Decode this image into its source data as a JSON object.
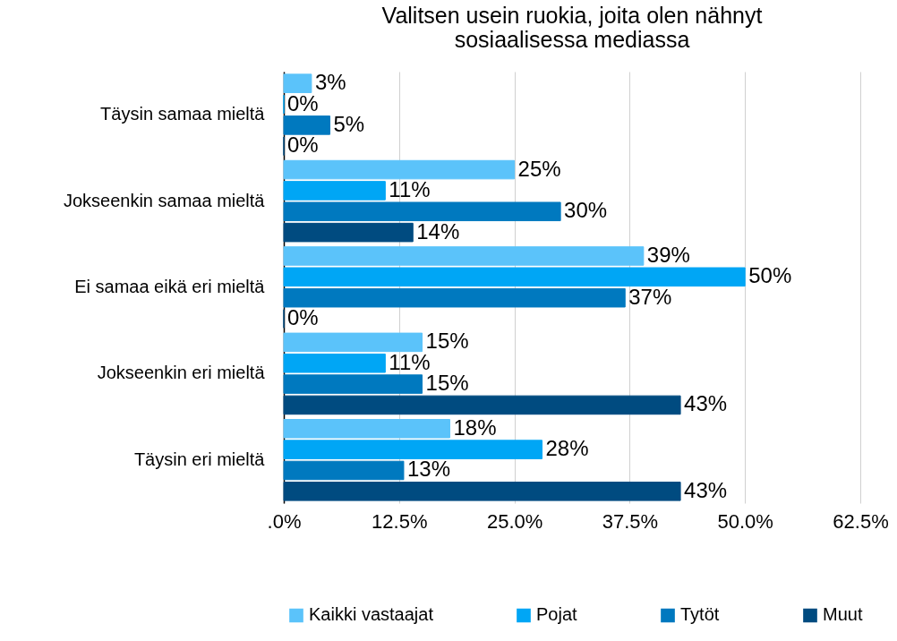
{
  "chart_data": {
    "type": "bar",
    "orientation": "horizontal",
    "title": "Valitsen usein ruokia, joita olen nähnyt sosiaalisessa mediassa",
    "categories": [
      "Täysin samaa mieltä",
      "Jokseenkin samaa mieltä",
      "Ei samaa eikä eri mieltä",
      "Jokseenkin eri mieltä",
      "Täysin eri mieltä"
    ],
    "series": [
      {
        "name": "Kaikki vastaajat",
        "color": "#5bc3fa",
        "values": [
          3,
          25,
          39,
          15,
          18
        ],
        "value_labels": [
          "3%",
          "25%",
          "39%",
          "15%",
          "18%"
        ]
      },
      {
        "name": "Pojat",
        "color": "#00a6f5",
        "values": [
          0,
          11,
          50,
          11,
          28
        ],
        "value_labels": [
          "0%",
          "11%",
          "50%",
          "11%",
          "28%"
        ]
      },
      {
        "name": "Tytöt",
        "color": "#0079bf",
        "values": [
          5,
          30,
          37,
          15,
          13
        ],
        "value_labels": [
          "5%",
          "30%",
          "37%",
          "15%",
          "13%"
        ]
      },
      {
        "name": "Muut",
        "color": "#004b80",
        "values": [
          0,
          14,
          0,
          43,
          43
        ],
        "value_labels": [
          "0%",
          "14%",
          "0%",
          "43%",
          "43%"
        ]
      }
    ],
    "xlim": [
      0,
      62.5
    ],
    "xticks": [
      {
        "value": 0,
        "label": ".0%"
      },
      {
        "value": 12.5,
        "label": "12.5%"
      },
      {
        "value": 25,
        "label": "25.0%"
      },
      {
        "value": 37.5,
        "label": "37.5%"
      },
      {
        "value": 50,
        "label": "50.0%"
      },
      {
        "value": 62.5,
        "label": "62.5%"
      }
    ],
    "grid": "x",
    "legend": "bottom"
  }
}
